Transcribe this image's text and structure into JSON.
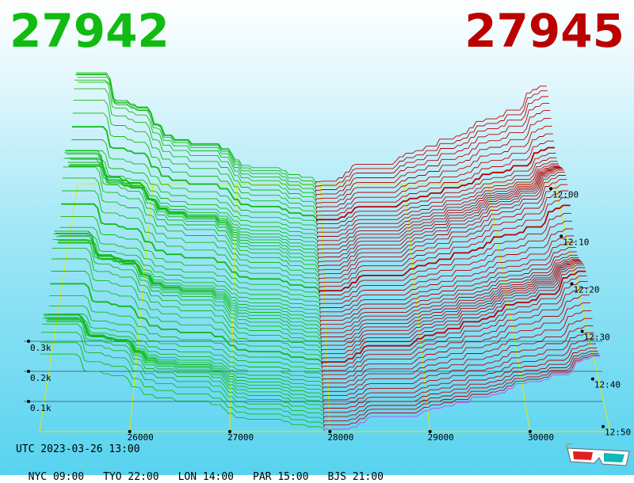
{
  "header": {
    "bid_price": "27942",
    "ask_price": "27945",
    "bid_color": "#11bb11",
    "ask_color": "#bb0000"
  },
  "footer": {
    "date": "UTC 2023-03-26 13:00",
    "zones": [
      "NYC 09:00",
      "TYO 22:00",
      "LON 14:00",
      "PAR 15:00",
      "BJS 21:00"
    ]
  },
  "chart_data": {
    "type": "area",
    "subtype": "3d order book depth (stacked time slices)",
    "x_axis": {
      "label": "",
      "ticks": [
        26000,
        27000,
        28000,
        29000,
        30000
      ],
      "range": [
        25100,
        30800
      ]
    },
    "depth_axis": {
      "ticks": [
        "0.1k",
        "0.2k",
        "0.3k"
      ],
      "values": [
        100,
        200,
        300
      ]
    },
    "time_axis": {
      "ticks": [
        "12:00",
        "12:10",
        "12:20",
        "12:30",
        "12:40",
        "12:50"
      ]
    },
    "mid_price": 27943,
    "bid_series_color": "#11bb11",
    "ask_series_color": "#bb0000",
    "latest_ask_color": "#cc44ee",
    "gridline_color": "#e8e800",
    "slices": 60,
    "bid_depth_at_edge_k": 0.45,
    "ask_depth_at_edge_k": 0.35
  },
  "icons": {
    "glasses": "3d-glasses-icon"
  }
}
